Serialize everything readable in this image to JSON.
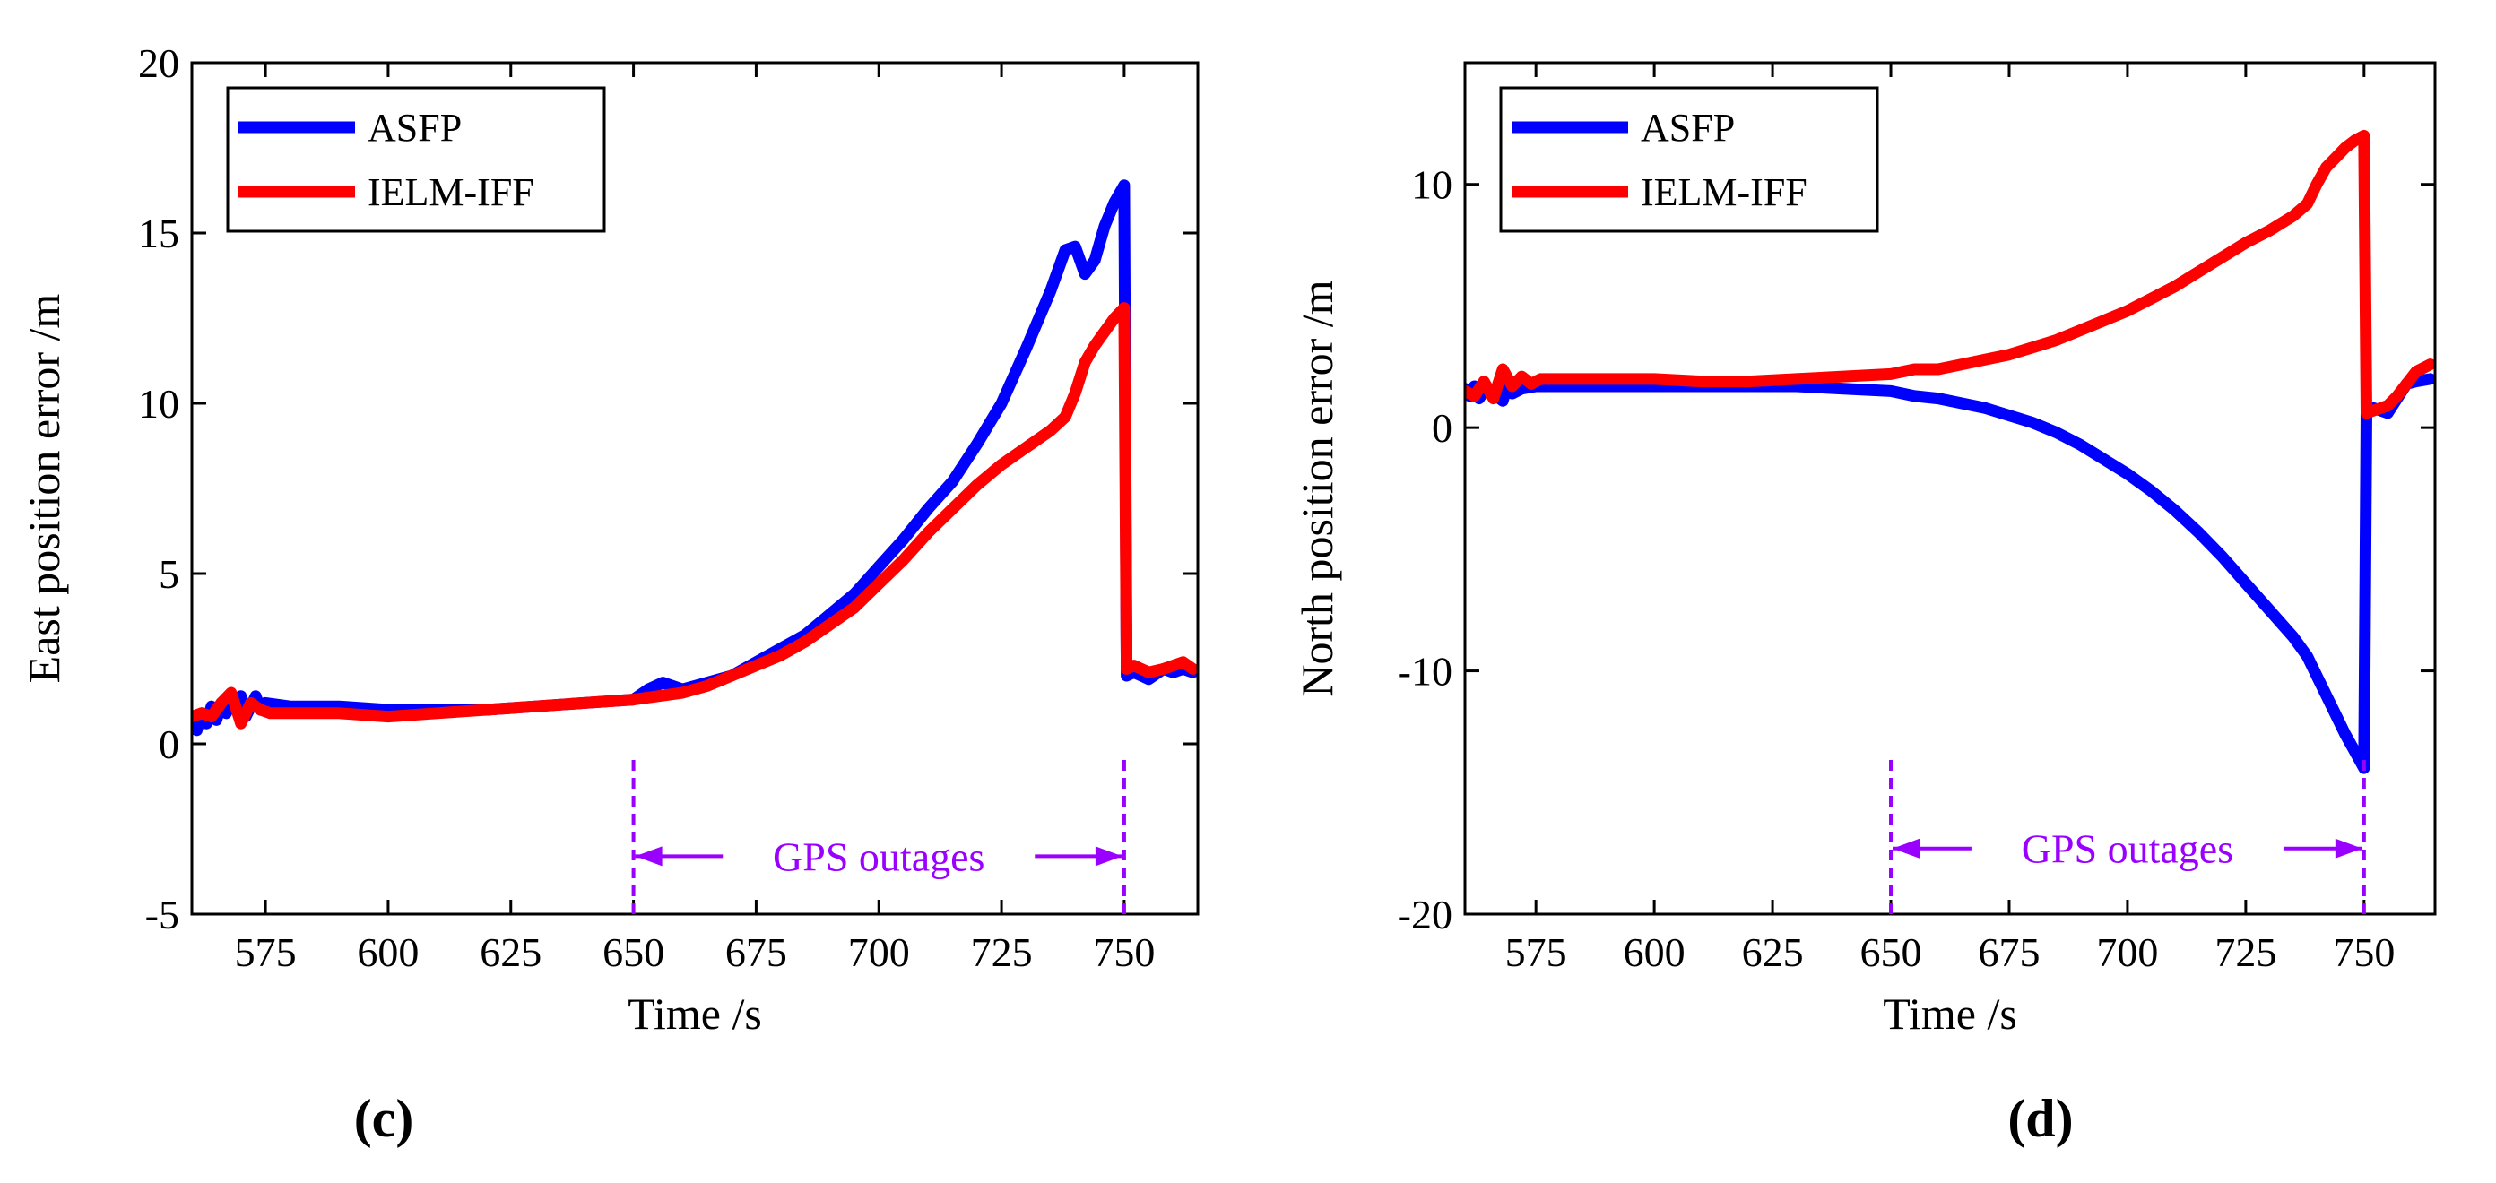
{
  "chart_data": [
    {
      "panel_id": "c",
      "panel_label": "(c)",
      "type": "line",
      "xlabel": "Time /s",
      "ylabel": "East position error /m",
      "xlim": [
        560,
        765
      ],
      "ylim": [
        -5,
        20
      ],
      "xticks": [
        575,
        600,
        625,
        650,
        675,
        700,
        725,
        750
      ],
      "yticks": [
        -5,
        0,
        5,
        10,
        15,
        20
      ],
      "legend_position": "top-left",
      "annotation": {
        "text": "GPS outages",
        "x_start": 650,
        "x_end": 750,
        "y": -3.3
      },
      "series": [
        {
          "name": "ASFP",
          "color": "#0000ff",
          "points": [
            [
              560,
              0.7
            ],
            [
              561,
              0.4
            ],
            [
              562,
              0.9
            ],
            [
              563,
              0.6
            ],
            [
              564,
              1.1
            ],
            [
              565,
              0.7
            ],
            [
              566,
              1.2
            ],
            [
              567,
              0.9
            ],
            [
              568,
              1.3
            ],
            [
              569,
              1.0
            ],
            [
              570,
              1.4
            ],
            [
              571,
              0.8
            ],
            [
              572,
              1.1
            ],
            [
              573,
              1.4
            ],
            [
              574,
              1.0
            ],
            [
              575,
              1.2
            ],
            [
              580,
              1.1
            ],
            [
              590,
              1.1
            ],
            [
              600,
              1.0
            ],
            [
              610,
              1.0
            ],
            [
              620,
              1.0
            ],
            [
              630,
              1.1
            ],
            [
              640,
              1.2
            ],
            [
              650,
              1.3
            ],
            [
              653,
              1.6
            ],
            [
              656,
              1.8
            ],
            [
              660,
              1.6
            ],
            [
              665,
              1.8
            ],
            [
              670,
              2.0
            ],
            [
              675,
              2.4
            ],
            [
              680,
              2.8
            ],
            [
              685,
              3.2
            ],
            [
              690,
              3.8
            ],
            [
              695,
              4.4
            ],
            [
              700,
              5.2
            ],
            [
              705,
              6.0
            ],
            [
              710,
              6.9
            ],
            [
              715,
              7.7
            ],
            [
              720,
              8.8
            ],
            [
              725,
              10.0
            ],
            [
              730,
              11.6
            ],
            [
              735,
              13.3
            ],
            [
              738,
              14.5
            ],
            [
              740,
              14.6
            ],
            [
              742,
              13.8
            ],
            [
              744,
              14.2
            ],
            [
              746,
              15.2
            ],
            [
              748,
              15.9
            ],
            [
              750,
              16.4
            ],
            [
              750.5,
              2.0
            ],
            [
              752,
              2.1
            ],
            [
              755,
              1.9
            ],
            [
              758,
              2.2
            ],
            [
              760,
              2.1
            ],
            [
              762,
              2.2
            ],
            [
              764,
              2.1
            ]
          ]
        },
        {
          "name": "IELM-IFF",
          "color": "#ff0000",
          "points": [
            [
              560,
              0.8
            ],
            [
              562,
              0.9
            ],
            [
              564,
              0.8
            ],
            [
              566,
              1.2
            ],
            [
              568,
              1.5
            ],
            [
              570,
              0.6
            ],
            [
              572,
              1.2
            ],
            [
              574,
              1.0
            ],
            [
              576,
              0.9
            ],
            [
              580,
              0.9
            ],
            [
              590,
              0.9
            ],
            [
              600,
              0.8
            ],
            [
              610,
              0.9
            ],
            [
              620,
              1.0
            ],
            [
              630,
              1.1
            ],
            [
              640,
              1.2
            ],
            [
              650,
              1.3
            ],
            [
              655,
              1.4
            ],
            [
              660,
              1.5
            ],
            [
              665,
              1.7
            ],
            [
              670,
              2.0
            ],
            [
              675,
              2.3
            ],
            [
              680,
              2.6
            ],
            [
              685,
              3.0
            ],
            [
              690,
              3.5
            ],
            [
              695,
              4.0
            ],
            [
              700,
              4.7
            ],
            [
              705,
              5.4
            ],
            [
              710,
              6.2
            ],
            [
              715,
              6.9
            ],
            [
              720,
              7.6
            ],
            [
              725,
              8.2
            ],
            [
              730,
              8.7
            ],
            [
              735,
              9.2
            ],
            [
              738,
              9.6
            ],
            [
              740,
              10.3
            ],
            [
              742,
              11.2
            ],
            [
              744,
              11.7
            ],
            [
              746,
              12.1
            ],
            [
              748,
              12.5
            ],
            [
              750,
              12.8
            ],
            [
              750.5,
              2.2
            ],
            [
              752,
              2.3
            ],
            [
              755,
              2.1
            ],
            [
              758,
              2.2
            ],
            [
              760,
              2.3
            ],
            [
              762,
              2.4
            ],
            [
              764,
              2.2
            ]
          ]
        }
      ]
    },
    {
      "panel_id": "d",
      "panel_label": "(d)",
      "type": "line",
      "xlabel": "Time /s",
      "ylabel": "North position error /m",
      "xlim": [
        560,
        765
      ],
      "ylim": [
        -20,
        15
      ],
      "xticks": [
        575,
        600,
        625,
        650,
        675,
        700,
        725,
        750
      ],
      "yticks": [
        -20,
        -10,
        0,
        10
      ],
      "legend_position": "top-left",
      "annotation": {
        "text": "GPS outages",
        "x_start": 650,
        "x_end": 750,
        "y": -17.3
      },
      "series": [
        {
          "name": "ASFP",
          "color": "#0000ff",
          "points": [
            [
              560,
              1.6
            ],
            [
              561,
              1.3
            ],
            [
              562,
              1.7
            ],
            [
              563,
              1.2
            ],
            [
              564,
              1.5
            ],
            [
              566,
              1.4
            ],
            [
              568,
              1.1
            ],
            [
              569,
              1.8
            ],
            [
              570,
              1.4
            ],
            [
              572,
              1.6
            ],
            [
              575,
              1.7
            ],
            [
              580,
              1.7
            ],
            [
              590,
              1.7
            ],
            [
              600,
              1.7
            ],
            [
              610,
              1.7
            ],
            [
              620,
              1.7
            ],
            [
              630,
              1.7
            ],
            [
              640,
              1.6
            ],
            [
              650,
              1.5
            ],
            [
              655,
              1.3
            ],
            [
              660,
              1.2
            ],
            [
              665,
              1.0
            ],
            [
              670,
              0.8
            ],
            [
              675,
              0.5
            ],
            [
              680,
              0.2
            ],
            [
              685,
              -0.2
            ],
            [
              690,
              -0.7
            ],
            [
              695,
              -1.3
            ],
            [
              700,
              -1.9
            ],
            [
              705,
              -2.6
            ],
            [
              710,
              -3.4
            ],
            [
              715,
              -4.3
            ],
            [
              720,
              -5.3
            ],
            [
              725,
              -6.4
            ],
            [
              730,
              -7.5
            ],
            [
              735,
              -8.6
            ],
            [
              738,
              -9.4
            ],
            [
              740,
              -10.2
            ],
            [
              742,
              -11.0
            ],
            [
              744,
              -11.8
            ],
            [
              746,
              -12.6
            ],
            [
              748,
              -13.3
            ],
            [
              750,
              -14.0
            ],
            [
              750.5,
              0.7
            ],
            [
              752,
              0.8
            ],
            [
              755,
              0.6
            ],
            [
              757,
              1.2
            ],
            [
              759,
              1.8
            ],
            [
              761,
              1.9
            ],
            [
              764,
              2.0
            ]
          ]
        },
        {
          "name": "IELM-IFF",
          "color": "#ff0000",
          "points": [
            [
              560,
              1.5
            ],
            [
              562,
              1.3
            ],
            [
              564,
              1.9
            ],
            [
              566,
              1.2
            ],
            [
              568,
              2.4
            ],
            [
              570,
              1.7
            ],
            [
              572,
              2.1
            ],
            [
              574,
              1.8
            ],
            [
              576,
              2.0
            ],
            [
              580,
              2.0
            ],
            [
              590,
              2.0
            ],
            [
              600,
              2.0
            ],
            [
              610,
              1.9
            ],
            [
              620,
              1.9
            ],
            [
              630,
              2.0
            ],
            [
              640,
              2.1
            ],
            [
              650,
              2.2
            ],
            [
              655,
              2.4
            ],
            [
              660,
              2.4
            ],
            [
              665,
              2.6
            ],
            [
              670,
              2.8
            ],
            [
              675,
              3.0
            ],
            [
              680,
              3.3
            ],
            [
              685,
              3.6
            ],
            [
              690,
              4.0
            ],
            [
              695,
              4.4
            ],
            [
              700,
              4.8
            ],
            [
              705,
              5.3
            ],
            [
              710,
              5.8
            ],
            [
              715,
              6.4
            ],
            [
              720,
              7.0
            ],
            [
              725,
              7.6
            ],
            [
              730,
              8.1
            ],
            [
              735,
              8.7
            ],
            [
              738,
              9.2
            ],
            [
              740,
              10.0
            ],
            [
              742,
              10.7
            ],
            [
              744,
              11.1
            ],
            [
              746,
              11.5
            ],
            [
              748,
              11.8
            ],
            [
              750,
              12.0
            ],
            [
              750.5,
              0.6
            ],
            [
              752,
              0.7
            ],
            [
              755,
              0.9
            ],
            [
              757,
              1.3
            ],
            [
              759,
              1.8
            ],
            [
              761,
              2.3
            ],
            [
              764,
              2.6
            ]
          ]
        }
      ]
    }
  ]
}
